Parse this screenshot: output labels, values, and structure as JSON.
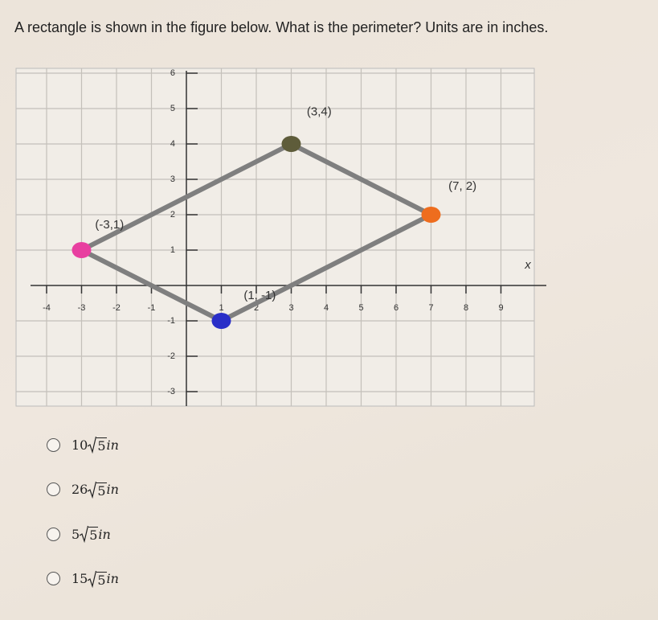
{
  "question": "A rectangle is shown in the figure below.  What is the perimeter?  Units are in inches.",
  "graph": {
    "xticks": [
      -4,
      -3,
      -2,
      -1,
      1,
      2,
      3,
      4,
      5,
      6,
      7,
      8,
      9
    ],
    "yticks": [
      6,
      5,
      4,
      3,
      2,
      1,
      -1,
      -2,
      -3
    ],
    "x_axis_label": "x",
    "points": [
      {
        "label": "(-3,1)",
        "x": -3,
        "y": 1,
        "color": "#e83fa0"
      },
      {
        "label": "(3,4)",
        "x": 3,
        "y": 4,
        "color": "#5e5c3a"
      },
      {
        "label": "(7, 2)",
        "x": 7,
        "y": 2,
        "color": "#ee6d1e"
      },
      {
        "label": "(1, -1)",
        "x": 1,
        "y": -1,
        "color": "#2a2fc8"
      }
    ]
  },
  "options": [
    {
      "coefficient": "10",
      "radicand": "5",
      "unit": "in"
    },
    {
      "coefficient": "26",
      "radicand": "5",
      "unit": "in"
    },
    {
      "coefficient": "5",
      "radicand": "5",
      "unit": "in"
    },
    {
      "coefficient": "15",
      "radicand": "5",
      "unit": "in"
    }
  ]
}
